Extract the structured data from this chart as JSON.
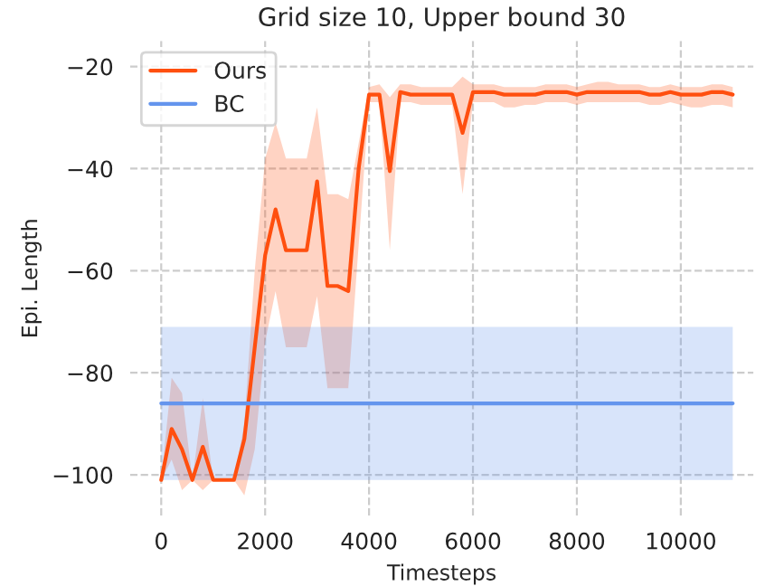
{
  "chart_data": {
    "type": "line",
    "title": "Grid size 10, Upper bound 30",
    "xlabel": "Timesteps",
    "ylabel": "Epi. Length",
    "xlim": [
      -600,
      11400
    ],
    "ylim": [
      -108,
      -15
    ],
    "xticks": [
      0,
      2000,
      4000,
      6000,
      8000,
      10000
    ],
    "yticks": [
      -100,
      -80,
      -60,
      -40,
      -20
    ],
    "grid": true,
    "legend": "top left",
    "series": [
      {
        "name": "Ours",
        "color": "#ff4f0f",
        "x": [
          0,
          200,
          400,
          600,
          800,
          1000,
          1200,
          1400,
          1600,
          1800,
          2000,
          2200,
          2400,
          2600,
          2800,
          3000,
          3200,
          3400,
          3600,
          3800,
          4000,
          4200,
          4400,
          4600,
          4800,
          5000,
          5200,
          5400,
          5600,
          5800,
          6000,
          6200,
          6400,
          6600,
          6800,
          7000,
          7200,
          7400,
          7600,
          7800,
          8000,
          8200,
          8400,
          8600,
          8800,
          9000,
          9200,
          9400,
          9600,
          9800,
          10000,
          10200,
          10400,
          10600,
          10800,
          11000
        ],
        "values": [
          -101,
          -91,
          -95,
          -101,
          -94.5,
          -101,
          -101,
          -101,
          -93,
          -75,
          -57,
          -48,
          -56,
          -56,
          -56,
          -42.5,
          -63,
          -63,
          -64,
          -40,
          -25.5,
          -25.5,
          -40.5,
          -25,
          -25.5,
          -25.5,
          -25.5,
          -25.5,
          -25.5,
          -33,
          -25,
          -25,
          -25,
          -25.5,
          -25.5,
          -25.5,
          -25.5,
          -25,
          -25,
          -25,
          -25.5,
          -25,
          -25,
          -25,
          -25,
          -25,
          -25,
          -25.5,
          -25.5,
          -25,
          -25.5,
          -25.5,
          -25.5,
          -25,
          -25,
          -25.5
        ],
        "lower": [
          -101,
          -97,
          -103,
          -101,
          -103,
          -101,
          -101,
          -101,
          -104,
          -95,
          -74,
          -64,
          -75,
          -75,
          -75,
          -65,
          -83,
          -83,
          -83,
          -55,
          -27,
          -27,
          -56,
          -27,
          -27,
          -27.5,
          -27.5,
          -27.5,
          -27.5,
          -45,
          -27,
          -27,
          -27,
          -28,
          -28,
          -27.5,
          -27.5,
          -27,
          -27,
          -27,
          -27.5,
          -27,
          -27,
          -27,
          -27,
          -27,
          -27,
          -27.5,
          -27.5,
          -27,
          -27.5,
          -28,
          -28,
          -27.5,
          -27.5,
          -28
        ],
        "upper": [
          -101,
          -81,
          -84,
          -101,
          -85,
          -101,
          -101,
          -101,
          -90,
          -60,
          -38,
          -31,
          -38,
          -38,
          -38,
          -28,
          -45,
          -45,
          -46,
          -35,
          -24,
          -23.5,
          -26,
          -23.5,
          -23.5,
          -24,
          -24,
          -24,
          -24,
          -22,
          -23.5,
          -23.5,
          -23.5,
          -24,
          -24,
          -24,
          -24,
          -23.5,
          -23.5,
          -23.5,
          -24,
          -23.5,
          -23,
          -23,
          -23.5,
          -23.5,
          -23.5,
          -24,
          -24,
          -23.5,
          -24,
          -24,
          -24,
          -23.5,
          -23.5,
          -24
        ]
      },
      {
        "name": "BC",
        "color": "#6495ed",
        "x": [
          0,
          11000
        ],
        "values": [
          -86,
          -86
        ],
        "lower": [
          -101,
          -101
        ],
        "upper": [
          -71,
          -71
        ]
      }
    ]
  }
}
